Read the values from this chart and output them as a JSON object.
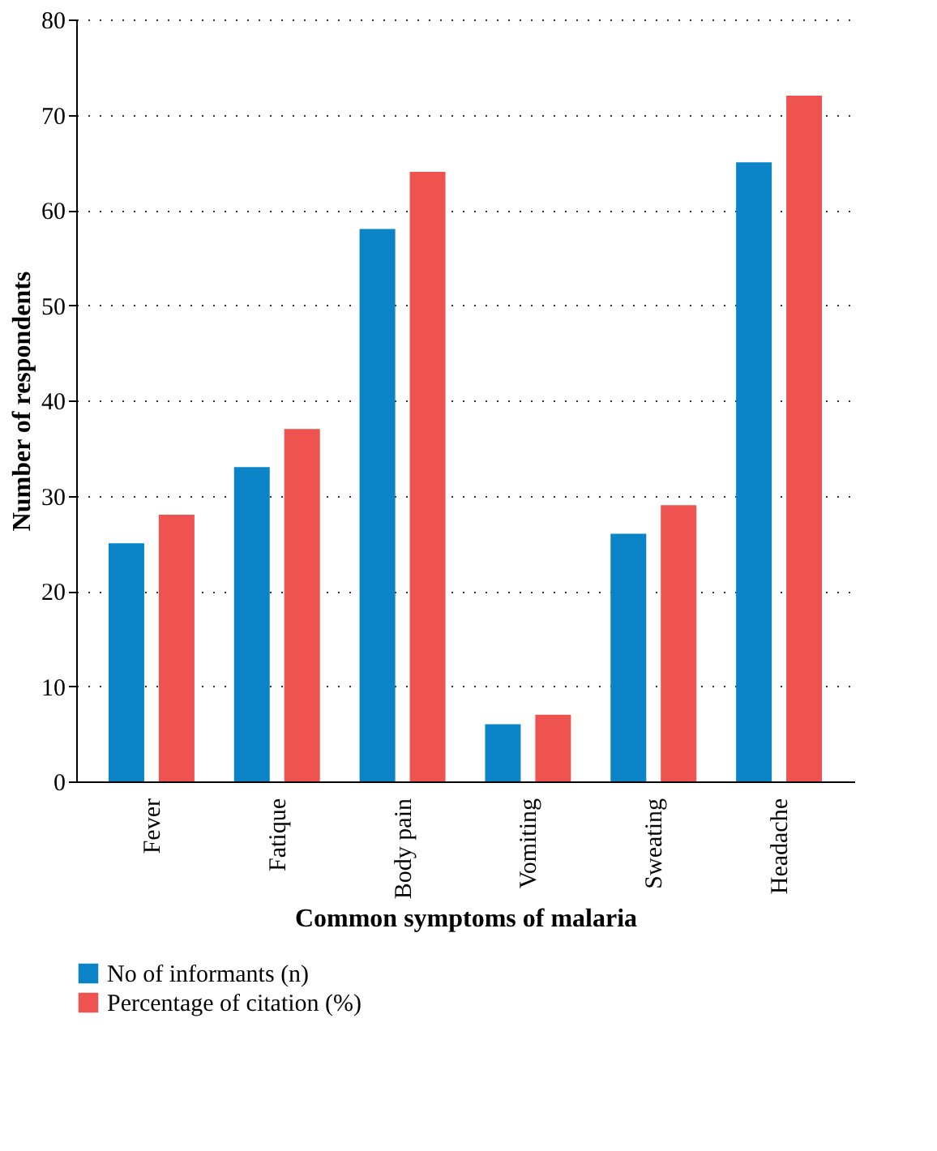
{
  "chart_data": {
    "type": "bar",
    "xlabel": "Common symptoms of malaria",
    "ylabel": "Number of respondents",
    "categories": [
      "Fever",
      "Fatique",
      "Body pain",
      "Vomiting",
      "Sweating",
      "Headache"
    ],
    "series": [
      {
        "name": "No of informants (n)",
        "color": "#0a84c6",
        "values": [
          25,
          33,
          58,
          6,
          26,
          65
        ]
      },
      {
        "name": "Percentage of citation (%)",
        "color": "#ef534f",
        "values": [
          28,
          37,
          64,
          7,
          29,
          72
        ]
      }
    ],
    "ylim": [
      0,
      80
    ],
    "yticks": [
      0,
      10,
      20,
      30,
      40,
      50,
      60,
      70,
      80
    ],
    "grid": "y",
    "legend": "bottom"
  }
}
